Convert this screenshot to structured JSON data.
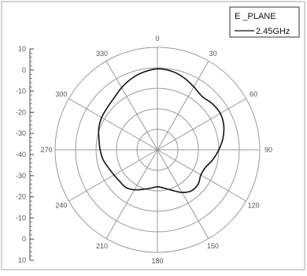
{
  "chart_data": {
    "type": "polar-line",
    "legend": {
      "title": "E _PLANE",
      "placement": "top-right",
      "series_label": "2.45GHz"
    },
    "radial_axis": {
      "range": [
        -40,
        10
      ],
      "ticks": [
        10,
        0,
        -10,
        -20,
        -30,
        -40,
        -30,
        -20,
        -10,
        0,
        10
      ],
      "tick_labels": [
        "10",
        "0",
        "-10",
        "-20",
        "-30",
        "-40",
        "-30",
        "-20",
        "-10",
        "0",
        "10"
      ]
    },
    "angular_axis": {
      "direction": "clockwise",
      "zero": "top",
      "ticks": [
        0,
        30,
        60,
        90,
        120,
        150,
        180,
        210,
        240,
        270,
        300,
        330
      ],
      "tick_labels": [
        "0",
        "30",
        "60",
        "90",
        "120",
        "150",
        "180",
        "210",
        "240",
        "270",
        "300",
        "330"
      ]
    },
    "grid": true,
    "series": [
      {
        "name": "2.45GHz",
        "color": "#111111",
        "angles": [
          0,
          10,
          20,
          30,
          40,
          50,
          60,
          70,
          80,
          90,
          100,
          110,
          120,
          130,
          140,
          150,
          160,
          170,
          180,
          190,
          200,
          210,
          220,
          230,
          240,
          250,
          260,
          270,
          280,
          290,
          300,
          310,
          320,
          330,
          340,
          350
        ],
        "values": [
          -0.5,
          -1,
          -2.5,
          -4.5,
          -6,
          -5,
          -4.5,
          -5.5,
          -7.5,
          -10,
          -12.5,
          -15,
          -15.5,
          -14,
          -14,
          -16,
          -19,
          -21,
          -22,
          -21,
          -19.5,
          -17.5,
          -16,
          -16,
          -15.5,
          -14.5,
          -13,
          -12,
          -11,
          -9.5,
          -8.5,
          -8,
          -7,
          -5,
          -3,
          -1.5
        ]
      }
    ]
  }
}
